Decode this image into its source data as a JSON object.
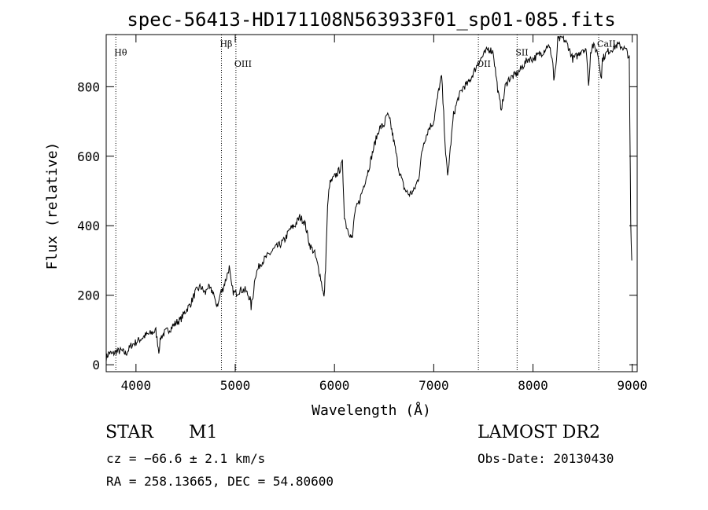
{
  "chart_data": {
    "type": "line",
    "title": "spec-56413-HD171108N563933F01_sp01-085.fits",
    "xlabel": "Wavelength (Å)",
    "ylabel": "Flux (relative)",
    "xlim": [
      3700,
      9050
    ],
    "ylim": [
      -20,
      950
    ],
    "x_ticks": [
      4000,
      5000,
      6000,
      7000,
      8000,
      9000
    ],
    "y_ticks": [
      0,
      200,
      400,
      600,
      800
    ],
    "grid": false,
    "series": [
      {
        "x": [
          3700,
          3730,
          3760,
          3800,
          3850,
          3900,
          3950,
          4000,
          4050,
          4100,
          4150,
          4200,
          4230,
          4250,
          4300,
          4350,
          4400,
          4450,
          4500,
          4550,
          4600,
          4650,
          4700,
          4720,
          4750,
          4780,
          4800,
          4830,
          4850,
          4870,
          4900,
          4920,
          4940,
          4960,
          4980,
          5000,
          5050,
          5100,
          5150,
          5160,
          5180,
          5200,
          5250,
          5300,
          5350,
          5400,
          5450,
          5500,
          5550,
          5600,
          5650,
          5700,
          5750,
          5800,
          5850,
          5880,
          5895,
          5910,
          5930,
          5950,
          6000,
          6050,
          6080,
          6100,
          6120,
          6150,
          6180,
          6200,
          6220,
          6250,
          6300,
          6350,
          6400,
          6450,
          6500,
          6530,
          6560,
          6600,
          6650,
          6700,
          6720,
          6750,
          6800,
          6850,
          6880,
          6900,
          6950,
          7000,
          7050,
          7080,
          7100,
          7120,
          7140,
          7160,
          7180,
          7200,
          7250,
          7300,
          7350,
          7400,
          7450,
          7500,
          7550,
          7600,
          7620,
          7650,
          7670,
          7680,
          7700,
          7720,
          7750,
          7800,
          7850,
          7900,
          7950,
          8000,
          8050,
          8100,
          8150,
          8180,
          8200,
          8210,
          8230,
          8250,
          8300,
          8350,
          8400,
          8450,
          8500,
          8540,
          8560,
          8580,
          8600,
          8650,
          8670,
          8690,
          8700,
          8750,
          8800,
          8850,
          8900,
          8950,
          8970,
          8985,
          8995
        ],
        "values": [
          20,
          35,
          30,
          38,
          40,
          32,
          55,
          65,
          75,
          85,
          90,
          98,
          40,
          80,
          95,
          105,
          120,
          130,
          155,
          175,
          210,
          225,
          205,
          225,
          215,
          210,
          175,
          175,
          205,
          215,
          240,
          260,
          280,
          230,
          210,
          205,
          215,
          215,
          190,
          165,
          200,
          255,
          290,
          305,
          320,
          335,
          345,
          360,
          390,
          400,
          425,
          410,
          345,
          320,
          265,
          220,
          190,
          280,
          450,
          520,
          540,
          560,
          580,
          430,
          400,
          380,
          360,
          430,
          450,
          470,
          520,
          570,
          630,
          680,
          690,
          720,
          700,
          640,
          560,
          510,
          500,
          490,
          500,
          540,
          610,
          640,
          680,
          700,
          790,
          830,
          720,
          610,
          540,
          600,
          660,
          720,
          770,
          800,
          810,
          840,
          870,
          890,
          910,
          900,
          850,
          780,
          750,
          740,
          760,
          800,
          820,
          830,
          840,
          860,
          880,
          880,
          890,
          900,
          920,
          900,
          870,
          820,
          850,
          935,
          940,
          920,
          880,
          890,
          910,
          900,
          800,
          900,
          920,
          900,
          860,
          830,
          880,
          900,
          910,
          920,
          915,
          900,
          880,
          400,
          300
        ]
      }
    ],
    "annotations": [
      {
        "label": "Hθ",
        "x": 3797,
        "label_y": 890
      },
      {
        "label": "Hβ",
        "x": 4861,
        "label_y": 915
      },
      {
        "label": "OIII",
        "x": 5007,
        "label_y": 857
      },
      {
        "label": "OII",
        "x": 7450,
        "label_y": 857
      },
      {
        "label": "SII",
        "x": 7840,
        "label_y": 890
      },
      {
        "label": "CaII",
        "x": 8662,
        "label_y": 915
      }
    ]
  },
  "footer": {
    "object_class": "STAR",
    "subclass": "M1",
    "survey": "LAMOST DR2",
    "cz": "cz = −66.6 ± 2.1 km/s",
    "obs_date": "Obs-Date: 20130430",
    "coords": "RA = 258.13665, DEC =  54.80600"
  }
}
